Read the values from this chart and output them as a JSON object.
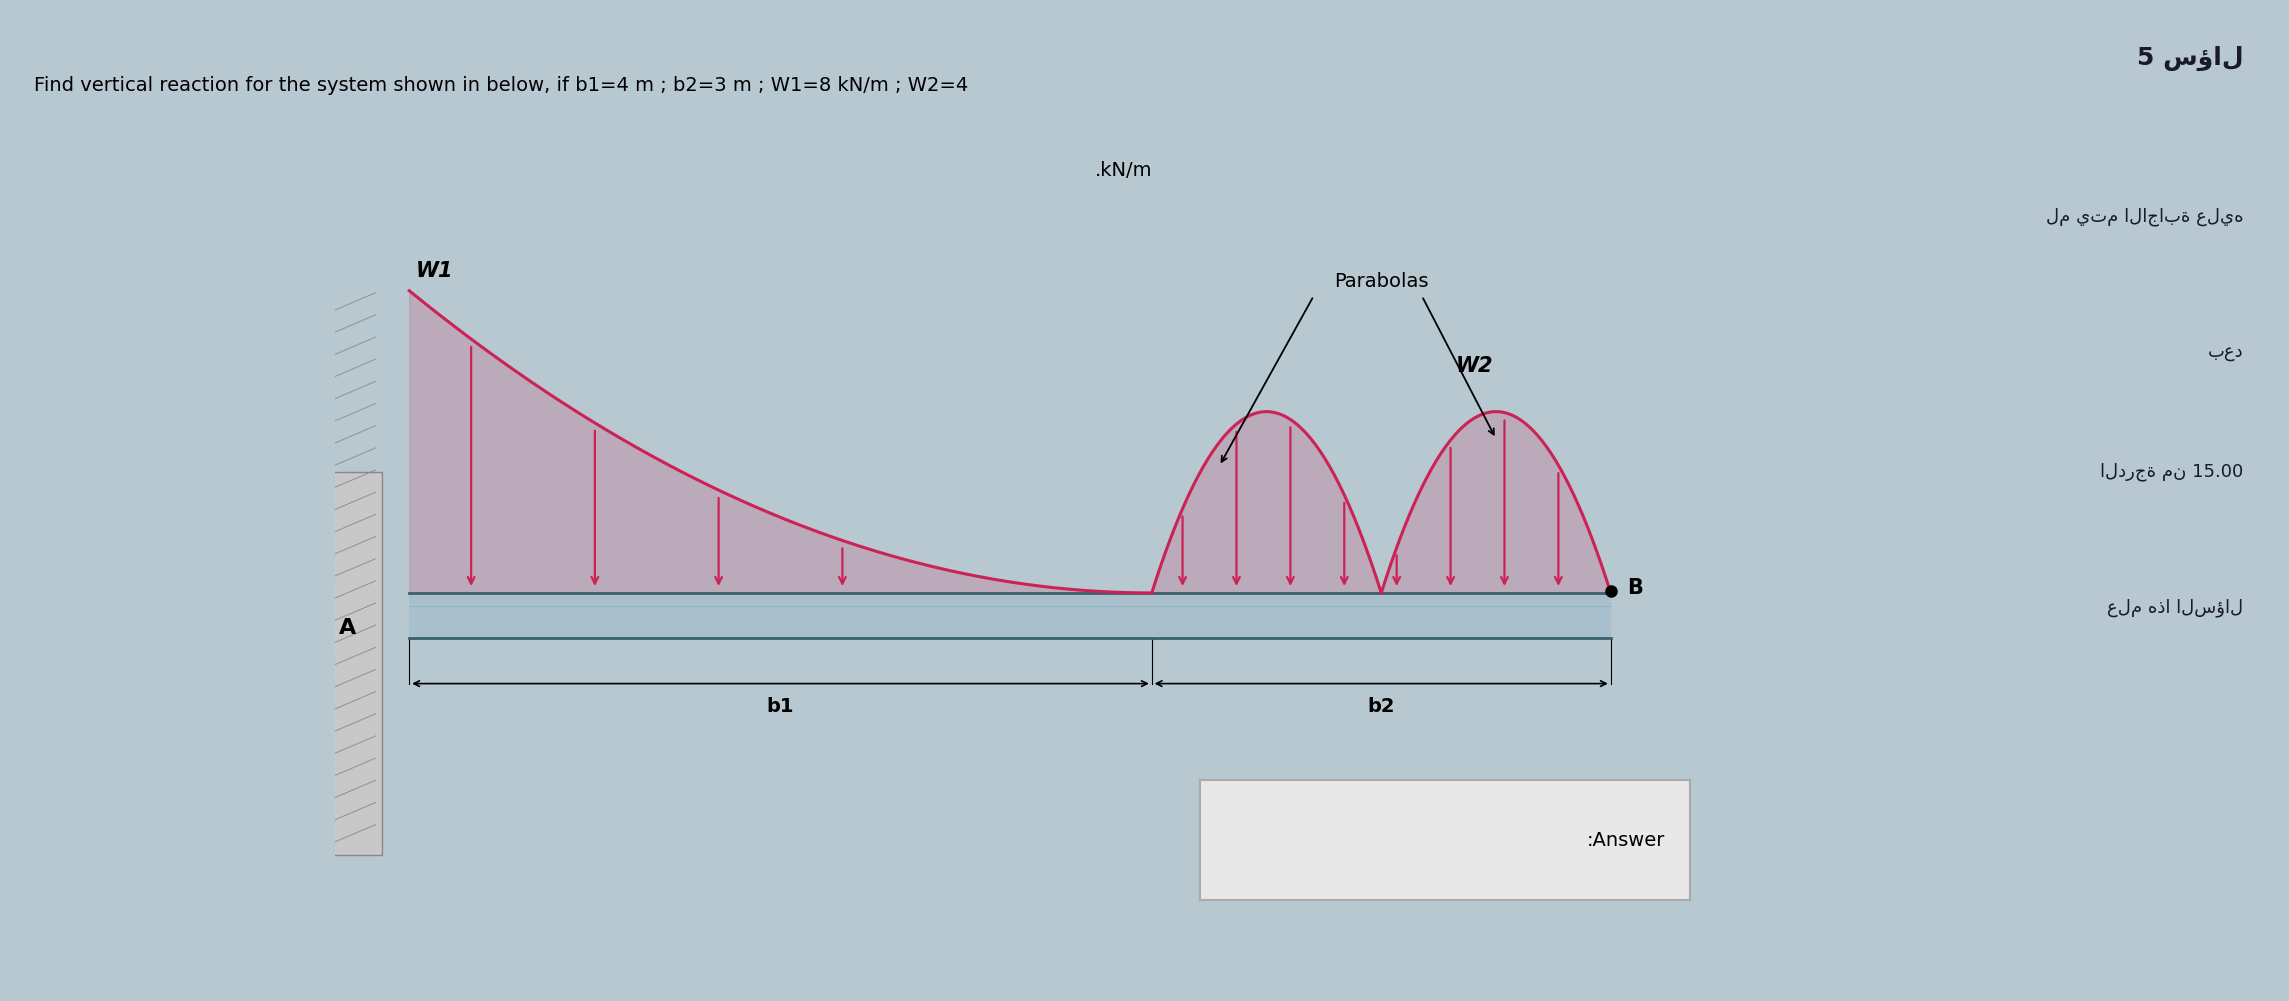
{
  "title_line1": "Find vertical reaction for the system shown in below, if b1=4 m ; b2=3 m ; W1=8 kN/m ; W2=4",
  "title_line2": ".kN/m",
  "side_title": "5 سؤال",
  "side_line2": "لم يتم الاجابة عليه",
  "side_line3": "بعد",
  "side_line4": "الدرجة من 15.00",
  "side_line5": "علم هذا",
  "side_line6": "السؤال",
  "answer_label": ":Answer",
  "label_W1": "W1",
  "label_W2": "W2",
  "label_parabolas": "Parabolas",
  "label_A": "A",
  "label_B": "B",
  "label_b1": "b1",
  "label_b2": "b2",
  "bg_outer": "#b8c8d0",
  "bg_main": "#c8d4d8",
  "panel_bg": "#e8eaec",
  "beam_fill": "#aabfcc",
  "beam_edge": "#5080a0",
  "load_color": "#cc2255",
  "wall_fill": "#c8c8c8",
  "wall_edge": "#888888",
  "side_panel_bg": "#7090a0",
  "answer_box_bg": "#e8e8e8",
  "answer_box_edge": "#aaaaaa"
}
